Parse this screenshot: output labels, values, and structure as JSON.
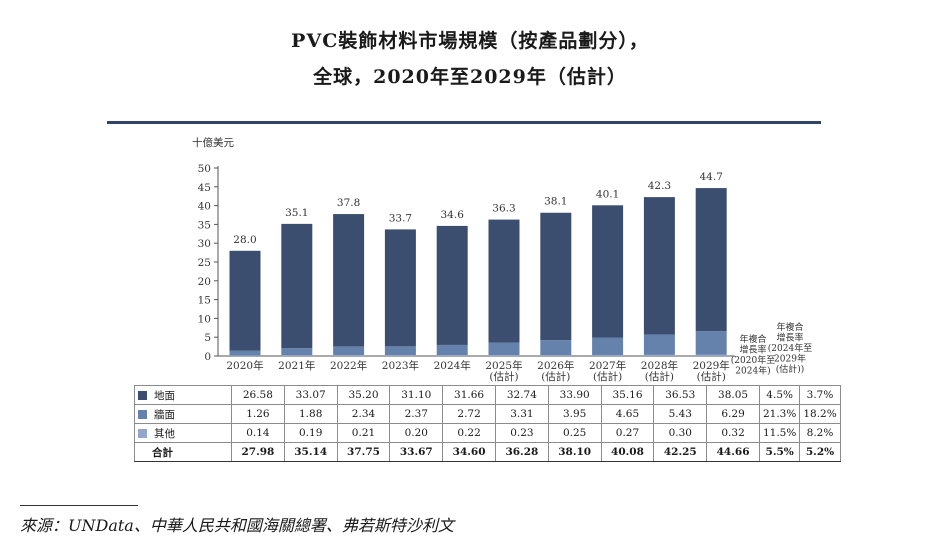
{
  "title_line1": "PVC裝飾材料市場規模（按產品劃分），",
  "title_line2": "全球，2020年至2029年（估計）",
  "chart_data": {
    "type": "bar",
    "stacked": true,
    "ylabel": "十億美元",
    "ylim": [
      0,
      50
    ],
    "yticks": [
      0,
      5,
      10,
      15,
      20,
      25,
      30,
      35,
      40,
      45,
      50
    ],
    "categories": [
      [
        "2020年"
      ],
      [
        "2021年"
      ],
      [
        "2022年"
      ],
      [
        "2023年"
      ],
      [
        "2024年"
      ],
      [
        "2025年",
        "(估計)"
      ],
      [
        "2026年",
        "(估計)"
      ],
      [
        "2027年",
        "(估計)"
      ],
      [
        "2028年",
        "(估計)"
      ],
      [
        "2029年",
        "(估計)"
      ]
    ],
    "series": [
      {
        "name": "地面",
        "color": "#3c4e6f",
        "values": [
          26.58,
          33.07,
          35.2,
          31.1,
          31.66,
          32.74,
          33.9,
          35.16,
          36.53,
          38.05
        ],
        "cagr_2020_2024": "4.5%",
        "cagr_2024_2029": "3.7%"
      },
      {
        "name": "牆面",
        "color": "#6482ac",
        "values": [
          1.26,
          1.88,
          2.34,
          2.37,
          2.72,
          3.31,
          3.95,
          4.65,
          5.43,
          6.29
        ],
        "cagr_2020_2024": "21.3%",
        "cagr_2024_2029": "18.2%"
      },
      {
        "name": "其他",
        "color": "#93a8c8",
        "values": [
          0.14,
          0.19,
          0.21,
          0.2,
          0.22,
          0.23,
          0.25,
          0.27,
          0.3,
          0.32
        ],
        "cagr_2020_2024": "11.5%",
        "cagr_2024_2029": "8.2%"
      }
    ],
    "bar_labels": [
      "28.0",
      "35.1",
      "37.8",
      "33.7",
      "34.6",
      "36.3",
      "38.1",
      "40.1",
      "42.3",
      "44.7"
    ],
    "total": {
      "name": "合計",
      "values": [
        "27.98",
        "35.14",
        "37.75",
        "33.67",
        "34.60",
        "36.28",
        "38.10",
        "40.08",
        "42.25",
        "44.66"
      ],
      "cagr_2020_2024": "5.5%",
      "cagr_2024_2029": "5.2%"
    },
    "cagr_headers": [
      [
        "年複合",
        "增長率",
        "(2020年至",
        "2024年)"
      ],
      [
        "年複合",
        "增長率",
        "(2024年至",
        "2029年",
        "(估計))"
      ]
    ]
  },
  "source": "來源：UNData、中華人民共和國海關總署、弗若斯特沙利文"
}
